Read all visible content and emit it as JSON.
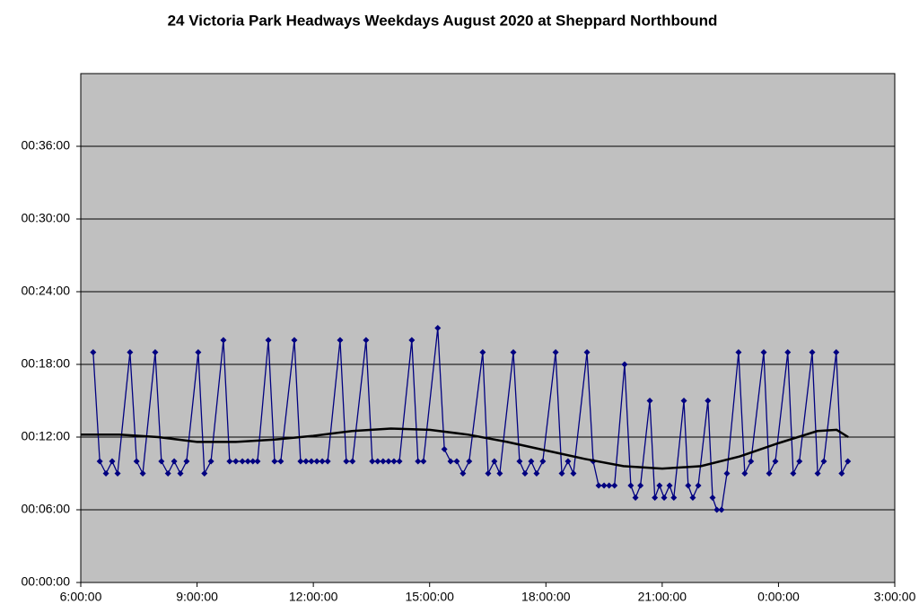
{
  "chart_data": {
    "type": "line",
    "title": "24 Victoria Park Headways Weekdays August 2020 at Sheppard Northbound",
    "xlim": [
      6,
      27
    ],
    "xticks": [
      {
        "value": 6,
        "label": "6:00:00"
      },
      {
        "value": 9,
        "label": "9:00:00"
      },
      {
        "value": 12,
        "label": "12:00:00"
      },
      {
        "value": 15,
        "label": "15:00:00"
      },
      {
        "value": 18,
        "label": "18:00:00"
      },
      {
        "value": 21,
        "label": "21:00:00"
      },
      {
        "value": 24,
        "label": "0:00:00"
      },
      {
        "value": 27,
        "label": "3:00:00"
      }
    ],
    "ylim": [
      0,
      42
    ],
    "yticks": [
      {
        "value": 0,
        "label": "00:00:00"
      },
      {
        "value": 6,
        "label": "00:06:00"
      },
      {
        "value": 12,
        "label": "00:12:00"
      },
      {
        "value": 18,
        "label": "00:18:00"
      },
      {
        "value": 24,
        "label": "00:24:00"
      },
      {
        "value": 30,
        "label": "00:30:00"
      },
      {
        "value": 36,
        "label": "00:36:00"
      }
    ],
    "grid": true,
    "series": [
      {
        "color": "#000080",
        "marker": "diamond",
        "x": [
          6.32,
          6.49,
          6.65,
          6.81,
          6.95,
          7.27,
          7.44,
          7.6,
          7.92,
          8.08,
          8.25,
          8.41,
          8.57,
          8.73,
          9.03,
          9.19,
          9.36,
          9.68,
          9.84,
          10.0,
          10.17,
          10.31,
          10.44,
          10.56,
          10.84,
          11.0,
          11.16,
          11.51,
          11.67,
          11.81,
          11.95,
          12.09,
          12.23,
          12.37,
          12.69,
          12.85,
          13.01,
          13.36,
          13.52,
          13.66,
          13.8,
          13.94,
          14.08,
          14.22,
          14.54,
          14.7,
          14.84,
          15.21,
          15.38,
          15.54,
          15.7,
          15.86,
          16.02,
          16.37,
          16.51,
          16.67,
          16.81,
          17.16,
          17.32,
          17.46,
          17.62,
          17.76,
          17.92,
          18.25,
          18.41,
          18.57,
          18.71,
          19.06,
          19.22,
          19.36,
          19.5,
          19.63,
          19.77,
          20.03,
          20.19,
          20.31,
          20.44,
          20.68,
          20.81,
          20.93,
          21.05,
          21.19,
          21.3,
          21.56,
          21.67,
          21.79,
          21.93,
          22.18,
          22.3,
          22.41,
          22.53,
          22.67,
          22.97,
          23.13,
          23.29,
          23.62,
          23.76,
          23.92,
          24.24,
          24.38,
          24.54,
          24.87,
          25.01,
          25.17,
          25.49,
          25.63,
          25.79
        ],
        "values": [
          19,
          10,
          9,
          10,
          9,
          19,
          10,
          9,
          19,
          10,
          9,
          10,
          9,
          10,
          19,
          9,
          10,
          20,
          10,
          10,
          10,
          10,
          10,
          10,
          20,
          10,
          10,
          20,
          10,
          10,
          10,
          10,
          10,
          10,
          20,
          10,
          10,
          20,
          10,
          10,
          10,
          10,
          10,
          10,
          20,
          10,
          10,
          21,
          11,
          10,
          10,
          9,
          10,
          19,
          9,
          10,
          9,
          19,
          10,
          9,
          10,
          9,
          10,
          19,
          9,
          10,
          9,
          19,
          10,
          8,
          8,
          8,
          8,
          18,
          8,
          7,
          8,
          15,
          7,
          8,
          7,
          8,
          7,
          15,
          8,
          7,
          8,
          15,
          7,
          6,
          6,
          9,
          19,
          9,
          10,
          19,
          9,
          10,
          19,
          9,
          10,
          19,
          9,
          10,
          19,
          9,
          10
        ]
      },
      {
        "color": "#000000",
        "x": [
          6,
          7,
          8,
          9,
          10,
          11,
          12,
          13,
          14,
          15,
          16,
          17,
          18,
          19,
          20,
          21,
          22,
          23,
          24,
          25,
          25.5,
          25.8
        ],
        "values": [
          12.2,
          12.2,
          12,
          11.6,
          11.6,
          11.8,
          12.1,
          12.5,
          12.7,
          12.6,
          12.2,
          11.6,
          10.9,
          10.2,
          9.6,
          9.4,
          9.6,
          10.4,
          11.5,
          12.5,
          12.6,
          12.0
        ]
      }
    ]
  }
}
